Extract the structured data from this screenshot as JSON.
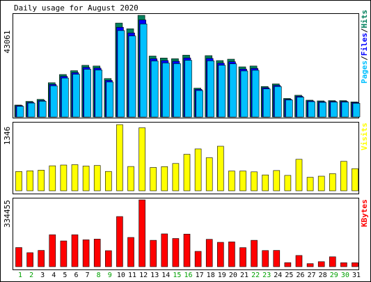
{
  "title": "Daily usage for August 2020",
  "colors": {
    "background": "#ffffff",
    "frame": "#000000",
    "hits": "#00805c",
    "files": "#0000ff",
    "pages": "#00c0ff",
    "visits": "#ffff00",
    "kbytes": "#ff0000",
    "weekend_label": "#00a000",
    "weekday_label": "#000000"
  },
  "chart_data": [
    {
      "type": "bar",
      "panel": "hits-files-pages",
      "ymax_label": "43061",
      "ylim": [
        0,
        43061
      ],
      "legend": [
        "Pages",
        "/",
        "Files",
        "/",
        "Hits"
      ],
      "categories": [
        "1",
        "2",
        "3",
        "4",
        "5",
        "6",
        "7",
        "8",
        "9",
        "10",
        "11",
        "12",
        "13",
        "14",
        "15",
        "16",
        "17",
        "18",
        "19",
        "20",
        "21",
        "22",
        "23",
        "24",
        "25",
        "26",
        "27",
        "28",
        "29",
        "30",
        "31"
      ],
      "series": [
        {
          "name": "Hits",
          "values": [
            5040,
            6600,
            7460,
            14500,
            17980,
            19620,
            21870,
            21580,
            16290,
            39800,
            37370,
            43061,
            25800,
            24970,
            24690,
            26180,
            12210,
            25980,
            23880,
            24490,
            21240,
            21580,
            12930,
            14010,
            7850,
            9190,
            7100,
            6800,
            6930,
            6930,
            6400
          ]
        },
        {
          "name": "Files",
          "values": [
            4800,
            6200,
            7000,
            13800,
            17200,
            18800,
            21000,
            20700,
            15500,
            38000,
            35600,
            41100,
            24700,
            23900,
            23600,
            25000,
            11700,
            24800,
            22800,
            23400,
            20300,
            20600,
            12400,
            13400,
            7500,
            8800,
            6800,
            6500,
            6600,
            6600,
            6100
          ]
        },
        {
          "name": "Pages",
          "values": [
            4500,
            5900,
            6700,
            13200,
            16500,
            18100,
            20200,
            19900,
            14800,
            36600,
            34300,
            39400,
            23700,
            22900,
            22600,
            24000,
            11200,
            23800,
            21900,
            22500,
            19500,
            19800,
            11900,
            12900,
            7200,
            8400,
            6500,
            6200,
            6300,
            6300,
            5800
          ]
        }
      ]
    },
    {
      "type": "bar",
      "panel": "visits",
      "ymax_label": "1346",
      "ylim": [
        0,
        1346
      ],
      "legend": [
        "Visits"
      ],
      "categories": [
        "1",
        "2",
        "3",
        "4",
        "5",
        "6",
        "7",
        "8",
        "9",
        "10",
        "11",
        "12",
        "13",
        "14",
        "15",
        "16",
        "17",
        "18",
        "19",
        "20",
        "21",
        "22",
        "23",
        "24",
        "25",
        "26",
        "27",
        "28",
        "29",
        "30",
        "31"
      ],
      "series": [
        {
          "name": "Visits",
          "values": [
            392,
            407,
            420,
            509,
            524,
            532,
            503,
            515,
            394,
            1346,
            494,
            1282,
            474,
            491,
            556,
            743,
            851,
            673,
            907,
            403,
            403,
            386,
            323,
            412,
            313,
            640,
            275,
            297,
            348,
            600,
            450
          ]
        }
      ]
    },
    {
      "type": "bar",
      "panel": "kbytes",
      "ymax_label": "334455",
      "ylim": [
        0,
        334455
      ],
      "legend": [
        "KBytes"
      ],
      "categories": [
        "1",
        "2",
        "3",
        "4",
        "5",
        "6",
        "7",
        "8",
        "9",
        "10",
        "11",
        "12",
        "13",
        "14",
        "15",
        "16",
        "17",
        "18",
        "19",
        "20",
        "21",
        "22",
        "23",
        "24",
        "25",
        "26",
        "27",
        "28",
        "29",
        "30",
        "31"
      ],
      "series": [
        {
          "name": "KBytes",
          "values": [
            95900,
            70100,
            81400,
            160000,
            129000,
            160000,
            134600,
            138000,
            80300,
            251000,
            146300,
            334455,
            132000,
            164000,
            141000,
            163000,
            76500,
            137000,
            122000,
            124000,
            95500,
            132000,
            80800,
            81400,
            20200,
            56200,
            15500,
            25200,
            49600,
            19800,
            19800
          ]
        }
      ]
    }
  ]
}
